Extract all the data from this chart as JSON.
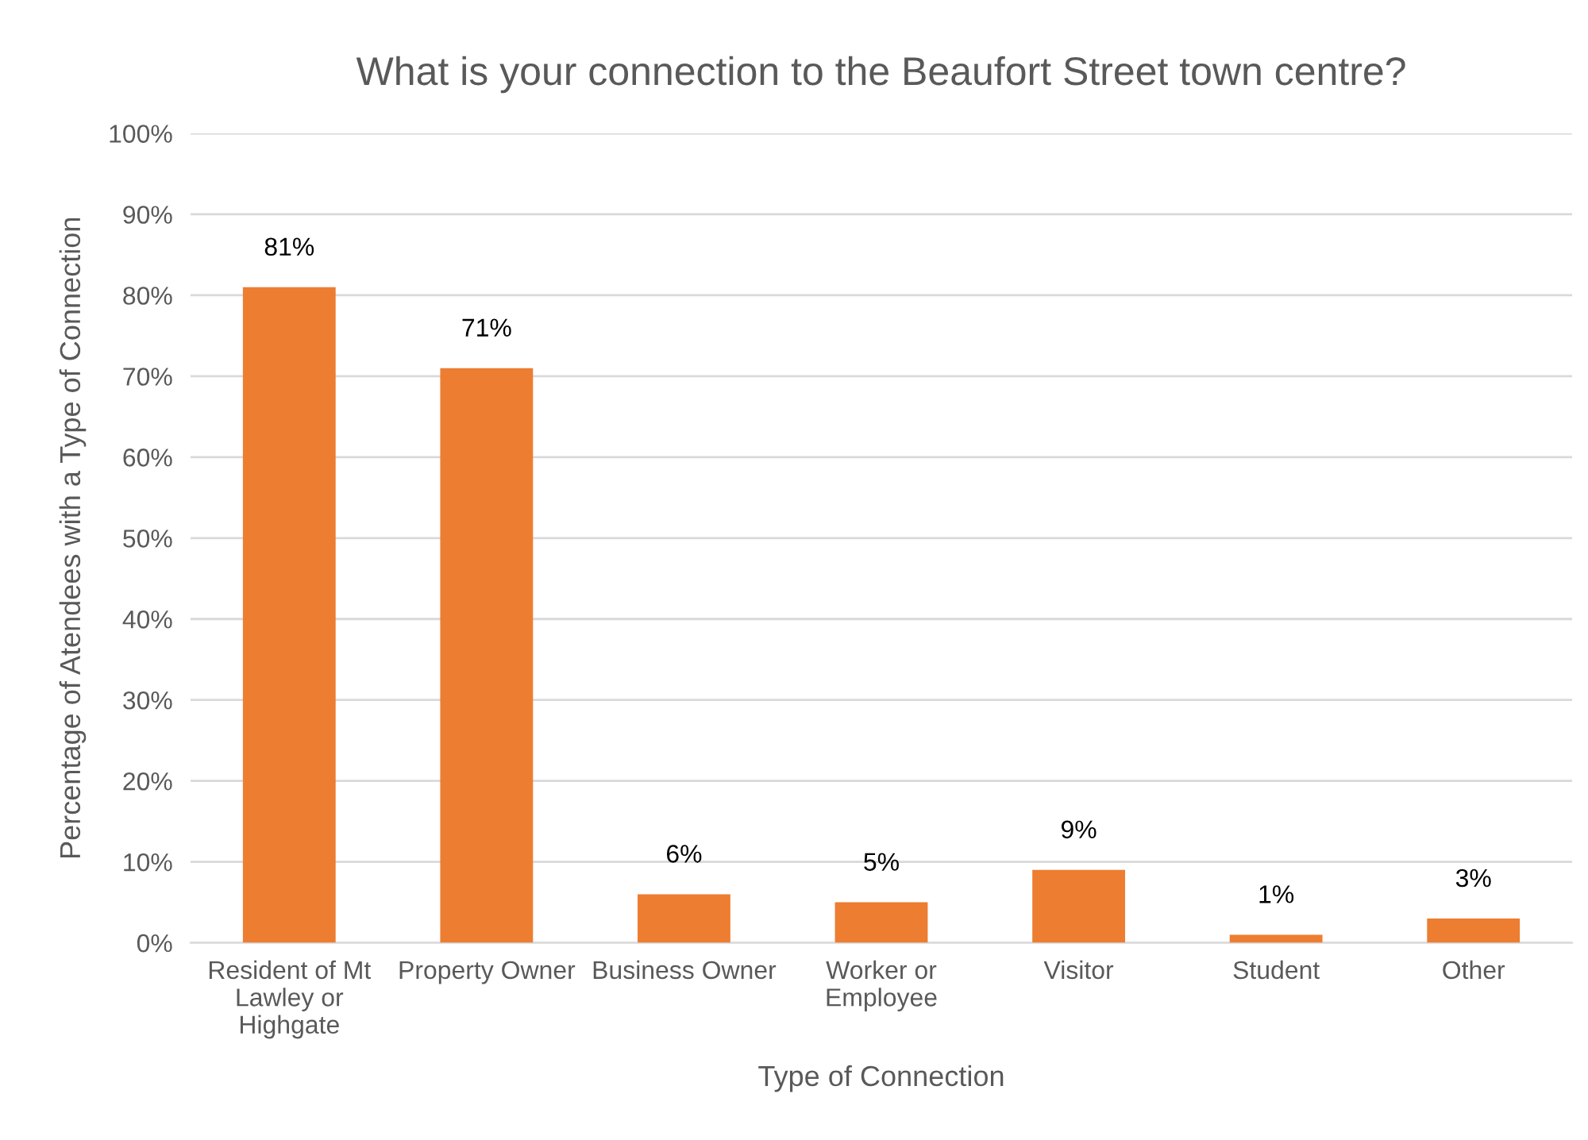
{
  "chart_data": {
    "type": "bar",
    "title": "What is your connection to the Beaufort Street town centre?",
    "xlabel": "Type of Connection",
    "ylabel": "Percentage of Atendees with a Type of Connection",
    "categories": [
      "Resident of Mt Lawley or Highgate",
      "Property Owner",
      "Business Owner",
      "Worker or Employee",
      "Visitor",
      "Student",
      "Other"
    ],
    "values": [
      81,
      71,
      6,
      5,
      9,
      1,
      3
    ],
    "value_labels": [
      "81%",
      "71%",
      "6%",
      "5%",
      "9%",
      "1%",
      "3%"
    ],
    "color": "#ed7d31",
    "ylim": [
      0,
      100
    ],
    "yticks": [
      {
        "value": 0,
        "label": "0%"
      },
      {
        "value": 10,
        "label": "10%"
      },
      {
        "value": 20,
        "label": "20%"
      },
      {
        "value": 30,
        "label": "30%"
      },
      {
        "value": 40,
        "label": "40%"
      },
      {
        "value": 50,
        "label": "50%"
      },
      {
        "value": 60,
        "label": "60%"
      },
      {
        "value": 70,
        "label": "70%"
      },
      {
        "value": 80,
        "label": "80%"
      },
      {
        "value": 90,
        "label": "90%"
      },
      {
        "value": 100,
        "label": "100%"
      }
    ],
    "grid": "y",
    "legend": false
  }
}
